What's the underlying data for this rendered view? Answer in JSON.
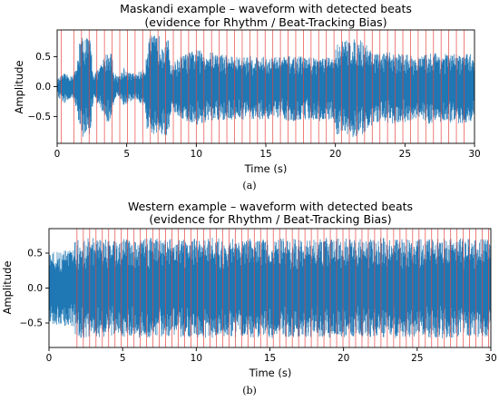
{
  "chart_data": [
    {
      "type": "line",
      "panel_caption": "(a)",
      "title": "Maskandi example – waveform with detected beats",
      "subtitle": "(evidence for Rhythm / Beat-Tracking Bias)",
      "xlabel": "Time (s)",
      "ylabel": "Amplitude",
      "xlim": [
        0,
        30
      ],
      "ylim": [
        -0.95,
        0.95
      ],
      "xticks": [
        0,
        5,
        10,
        15,
        20,
        25,
        30
      ],
      "xtick_labels": [
        "0",
        "5",
        "10",
        "15",
        "20",
        "25",
        "30"
      ],
      "yticks": [
        0.5,
        0.0,
        -0.5
      ],
      "ytick_labels": [
        "0.5",
        "0.0",
        "−0.5"
      ],
      "grid": false,
      "waveform_color": "#1f77b4",
      "beat_line_color": "#e8413c",
      "beat_times": [
        0.3,
        1.2,
        1.75,
        2.3,
        2.85,
        3.4,
        3.95,
        4.5,
        5.05,
        5.6,
        6.15,
        6.7,
        7.25,
        7.8,
        8.35,
        8.9,
        9.45,
        10.0,
        10.55,
        11.1,
        11.65,
        12.2,
        12.75,
        13.3,
        13.85,
        14.4,
        14.95,
        15.5,
        16.05,
        16.6,
        17.15,
        17.7,
        18.25,
        18.8,
        19.35,
        19.9,
        20.45,
        21.0,
        21.55,
        22.1,
        22.65,
        23.2,
        23.75,
        24.3,
        24.85,
        25.4,
        25.95,
        26.5,
        27.05,
        27.6,
        28.15,
        28.7,
        29.25
      ],
      "envelope": {
        "time": [
          0,
          0.5,
          1.0,
          1.4,
          1.6,
          2.0,
          2.4,
          2.6,
          3.0,
          3.6,
          3.9,
          4.1,
          4.5,
          4.8,
          5.0,
          5.6,
          6.3,
          6.5,
          6.8,
          7.5,
          8.0,
          8.2,
          8.7,
          9.2,
          10.0,
          11.0,
          12.0,
          13.0,
          14.0,
          15.0,
          16.0,
          17.0,
          18.0,
          19.0,
          19.9,
          20.1,
          21.0,
          22.0,
          22.5,
          23.0,
          24.0,
          25.0,
          26.0,
          27.0,
          28.0,
          29.0,
          30.0
        ],
        "upper": [
          0.12,
          0.22,
          0.18,
          0.3,
          0.82,
          0.86,
          0.8,
          0.22,
          0.3,
          0.6,
          0.62,
          0.22,
          0.18,
          0.35,
          0.25,
          0.22,
          0.3,
          0.8,
          0.86,
          0.86,
          0.78,
          0.35,
          0.48,
          0.55,
          0.62,
          0.58,
          0.55,
          0.5,
          0.52,
          0.5,
          0.5,
          0.52,
          0.5,
          0.5,
          0.48,
          0.75,
          0.8,
          0.78,
          0.65,
          0.55,
          0.58,
          0.55,
          0.5,
          0.58,
          0.55,
          0.55,
          0.55
        ],
        "lower": [
          -0.18,
          -0.28,
          -0.22,
          -0.35,
          -0.82,
          -0.86,
          -0.8,
          -0.22,
          -0.32,
          -0.6,
          -0.62,
          -0.22,
          -0.2,
          -0.35,
          -0.28,
          -0.22,
          -0.35,
          -0.82,
          -0.86,
          -0.86,
          -0.8,
          -0.4,
          -0.5,
          -0.58,
          -0.65,
          -0.6,
          -0.58,
          -0.55,
          -0.55,
          -0.55,
          -0.55,
          -0.58,
          -0.55,
          -0.58,
          -0.55,
          -0.8,
          -0.86,
          -0.82,
          -0.7,
          -0.6,
          -0.62,
          -0.6,
          -0.55,
          -0.65,
          -0.6,
          -0.62,
          -0.58
        ]
      }
    },
    {
      "type": "line",
      "panel_caption": "(b)",
      "title": "Western example – waveform with detected beats",
      "subtitle": "(evidence for Rhythm / Beat-Tracking Bias)",
      "xlabel": "Time (s)",
      "ylabel": "Amplitude",
      "xlim": [
        0,
        30
      ],
      "ylim": [
        -0.85,
        0.85
      ],
      "xticks": [
        0,
        5,
        10,
        15,
        20,
        25,
        30
      ],
      "xtick_labels": [
        "0",
        "5",
        "10",
        "15",
        "20",
        "25",
        "30"
      ],
      "yticks": [
        0.5,
        0.0,
        -0.5
      ],
      "ytick_labels": [
        "0.5",
        "0.0",
        "−0.5"
      ],
      "grid": false,
      "waveform_color": "#1f77b4",
      "beat_line_color": "#e8413c",
      "beat_times": [
        1.9,
        2.33,
        2.76,
        3.19,
        3.62,
        4.05,
        4.48,
        4.91,
        5.34,
        5.77,
        6.2,
        6.63,
        7.06,
        7.49,
        7.92,
        8.35,
        8.78,
        9.21,
        9.64,
        10.07,
        10.5,
        10.93,
        11.36,
        11.79,
        12.22,
        12.65,
        13.08,
        13.51,
        13.94,
        14.37,
        14.8,
        15.23,
        15.66,
        16.09,
        16.52,
        16.95,
        17.38,
        17.81,
        18.24,
        18.67,
        19.1,
        19.53,
        19.96,
        20.39,
        20.82,
        21.25,
        21.68,
        22.11,
        22.54,
        22.97,
        23.4,
        23.83,
        24.26,
        24.69,
        25.12,
        25.55,
        25.98,
        26.41,
        26.84,
        27.27,
        27.7,
        28.13,
        28.56,
        28.99,
        29.42,
        29.85
      ],
      "envelope": {
        "time": [
          0,
          1.5,
          1.9,
          3.0,
          5.0,
          7.0,
          9.0,
          11.0,
          13.0,
          15.0,
          17.0,
          19.0,
          21.0,
          23.0,
          25.0,
          27.0,
          29.0,
          30.0
        ],
        "upper": [
          0.52,
          0.55,
          0.72,
          0.72,
          0.7,
          0.72,
          0.7,
          0.72,
          0.7,
          0.72,
          0.7,
          0.72,
          0.7,
          0.72,
          0.7,
          0.72,
          0.7,
          0.7
        ],
        "lower": [
          -0.52,
          -0.55,
          -0.72,
          -0.72,
          -0.7,
          -0.72,
          -0.7,
          -0.72,
          -0.7,
          -0.72,
          -0.7,
          -0.72,
          -0.7,
          -0.72,
          -0.7,
          -0.72,
          -0.7,
          -0.7
        ]
      }
    }
  ]
}
